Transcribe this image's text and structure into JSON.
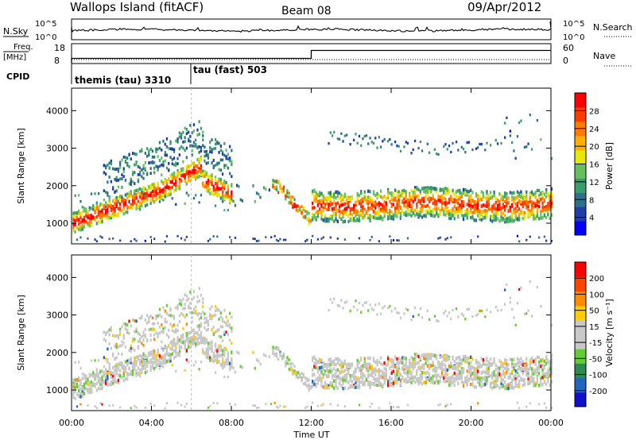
{
  "header": {
    "station": "Wallops Island (fitACF)",
    "beam": "Beam 08",
    "date": "09/Apr/2012"
  },
  "summary_panels": {
    "nsky_label": "N.Sky",
    "nsearch_label": "N.Search",
    "nsky_ticks": [
      "10^5",
      "10^0"
    ],
    "nsearch_ticks": [
      "10^5",
      "10^0"
    ],
    "freq_label": "Freq.",
    "freq_unit": "[MHz]",
    "freq_ticks": [
      "18",
      "8"
    ],
    "nave_label": "Nave",
    "nave_ticks": [
      "60",
      "0"
    ],
    "cpid_label": "CPID",
    "cpid_segments": [
      {
        "label": "themis (tau) 3310",
        "start_hour": 0
      },
      {
        "label": "tau (fast) 503",
        "start_hour": 6
      }
    ]
  },
  "colors": {
    "power_scale": [
      "#0000ff",
      "#1f3ea8",
      "#2f6f8a",
      "#3a9c6a",
      "#66c060",
      "#e8e800",
      "#ffb000",
      "#ff7a00",
      "#ff3c00",
      "#ff0000"
    ],
    "velocity_scale": [
      "#1111cc",
      "#2266bb",
      "#2e8a4e",
      "#66cc33",
      "#c8c8c8",
      "#c8c8c8",
      "#ffcc00",
      "#ff8a00",
      "#ff4400",
      "#ff0000"
    ]
  },
  "chart_data": [
    {
      "type": "heatmap",
      "name": "power-panel",
      "ylabel": "Slant Range [km]",
      "yticks": [
        "1000",
        "2000",
        "3000",
        "4000"
      ],
      "ylim": [
        450,
        4600
      ],
      "xlim": [
        0,
        24
      ],
      "colorbar_label": "Power [dB]",
      "colorbar_ticks": [
        "4",
        "8",
        "12",
        "16",
        "20",
        "24",
        "28"
      ],
      "colorbar_range": [
        0,
        32
      ]
    },
    {
      "type": "heatmap",
      "name": "velocity-panel",
      "ylabel": "Slant Range [km]",
      "yticks": [
        "1000",
        "2000",
        "3000",
        "4000"
      ],
      "ylim": [
        450,
        4600
      ],
      "xlim": [
        0,
        24
      ],
      "colorbar_label": "Velocity [m s⁻¹]",
      "colorbar_ticks": [
        "-200",
        "-100",
        "-50",
        "-15",
        "15",
        "50",
        "100",
        "200"
      ]
    }
  ],
  "time_axis": {
    "xlabel": "Time UT",
    "ticks": [
      "00:00",
      "04:00",
      "08:00",
      "12:00",
      "16:00",
      "20:00",
      "00:00"
    ]
  }
}
